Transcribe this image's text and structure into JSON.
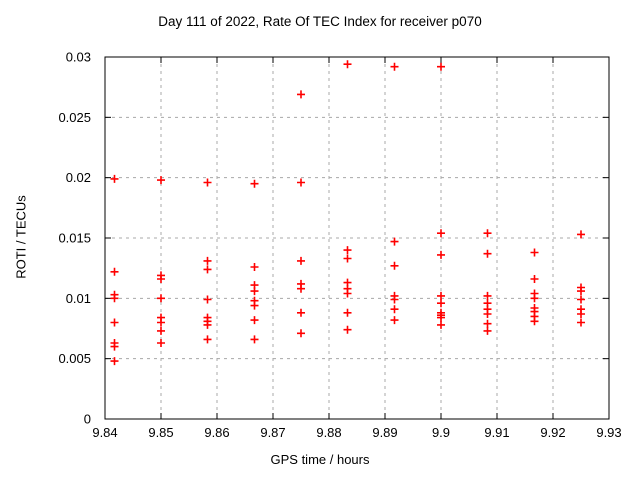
{
  "chart_data": {
    "type": "scatter",
    "title": "Day 111 of 2022, Rate Of TEC Index for receiver p070",
    "xlabel": "GPS time / hours",
    "ylabel": "ROTI / TECUs",
    "xlim": [
      9.84,
      9.93
    ],
    "ylim": [
      0,
      0.03
    ],
    "xticks": [
      9.84,
      9.85,
      9.86,
      9.87,
      9.88,
      9.89,
      9.9,
      9.91,
      9.92,
      9.93
    ],
    "xtick_labels": [
      "9.84",
      "9.85",
      "9.86",
      "9.87",
      "9.88",
      "9.89",
      "9.9",
      "9.91",
      "9.92",
      "9.93"
    ],
    "yticks": [
      0,
      0.005,
      0.01,
      0.015,
      0.02,
      0.025,
      0.03
    ],
    "ytick_labels": [
      "0",
      "0.005",
      "0.01",
      "0.015",
      "0.02",
      "0.025",
      "0.03"
    ],
    "grid": true,
    "legend_position": "none",
    "marker": "plus",
    "marker_color": "#ff0000",
    "series": [
      {
        "name": "ROTI",
        "points": [
          [
            9.8417,
            0.0199
          ],
          [
            9.8417,
            0.0122
          ],
          [
            9.8417,
            0.0103
          ],
          [
            9.8417,
            0.01
          ],
          [
            9.8417,
            0.008
          ],
          [
            9.8417,
            0.0063
          ],
          [
            9.8417,
            0.006
          ],
          [
            9.8417,
            0.0048
          ],
          [
            9.85,
            0.0198
          ],
          [
            9.85,
            0.0119
          ],
          [
            9.85,
            0.0116
          ],
          [
            9.85,
            0.01
          ],
          [
            9.85,
            0.0084
          ],
          [
            9.85,
            0.008
          ],
          [
            9.85,
            0.0073
          ],
          [
            9.85,
            0.0063
          ],
          [
            9.8583,
            0.0196
          ],
          [
            9.8583,
            0.0131
          ],
          [
            9.8583,
            0.0124
          ],
          [
            9.8583,
            0.0099
          ],
          [
            9.8583,
            0.0084
          ],
          [
            9.8583,
            0.0081
          ],
          [
            9.8583,
            0.0078
          ],
          [
            9.8583,
            0.0066
          ],
          [
            9.8667,
            0.0195
          ],
          [
            9.8667,
            0.0126
          ],
          [
            9.8667,
            0.0111
          ],
          [
            9.8667,
            0.0106
          ],
          [
            9.8667,
            0.0098
          ],
          [
            9.8667,
            0.0094
          ],
          [
            9.8667,
            0.0082
          ],
          [
            9.8667,
            0.0066
          ],
          [
            9.875,
            0.0269
          ],
          [
            9.875,
            0.0196
          ],
          [
            9.875,
            0.0131
          ],
          [
            9.875,
            0.0112
          ],
          [
            9.875,
            0.0108
          ],
          [
            9.875,
            0.0088
          ],
          [
            9.875,
            0.0071
          ],
          [
            9.8833,
            0.0294
          ],
          [
            9.8833,
            0.014
          ],
          [
            9.8833,
            0.0133
          ],
          [
            9.8833,
            0.0113
          ],
          [
            9.8833,
            0.0108
          ],
          [
            9.8833,
            0.0104
          ],
          [
            9.8833,
            0.0088
          ],
          [
            9.8833,
            0.0074
          ],
          [
            9.8917,
            0.0292
          ],
          [
            9.8917,
            0.0147
          ],
          [
            9.8917,
            0.0127
          ],
          [
            9.8917,
            0.0102
          ],
          [
            9.8917,
            0.0099
          ],
          [
            9.8917,
            0.0091
          ],
          [
            9.8917,
            0.0082
          ],
          [
            9.9,
            0.0292
          ],
          [
            9.9,
            0.0154
          ],
          [
            9.9,
            0.0136
          ],
          [
            9.9,
            0.0102
          ],
          [
            9.9,
            0.0096
          ],
          [
            9.9,
            0.0088
          ],
          [
            9.9,
            0.0086
          ],
          [
            9.9,
            0.0084
          ],
          [
            9.9,
            0.0078
          ],
          [
            9.9083,
            0.0154
          ],
          [
            9.9083,
            0.0137
          ],
          [
            9.9083,
            0.0102
          ],
          [
            9.9083,
            0.0096
          ],
          [
            9.9083,
            0.0091
          ],
          [
            9.9083,
            0.0087
          ],
          [
            9.9083,
            0.0079
          ],
          [
            9.9083,
            0.0073
          ],
          [
            9.9167,
            0.0138
          ],
          [
            9.9167,
            0.0116
          ],
          [
            9.9167,
            0.0104
          ],
          [
            9.9167,
            0.01
          ],
          [
            9.9167,
            0.0092
          ],
          [
            9.9167,
            0.0089
          ],
          [
            9.9167,
            0.0085
          ],
          [
            9.9167,
            0.0081
          ],
          [
            9.925,
            0.0153
          ],
          [
            9.925,
            0.0109
          ],
          [
            9.925,
            0.0106
          ],
          [
            9.925,
            0.0099
          ],
          [
            9.925,
            0.0091
          ],
          [
            9.925,
            0.0087
          ],
          [
            9.925,
            0.008
          ]
        ]
      }
    ]
  }
}
